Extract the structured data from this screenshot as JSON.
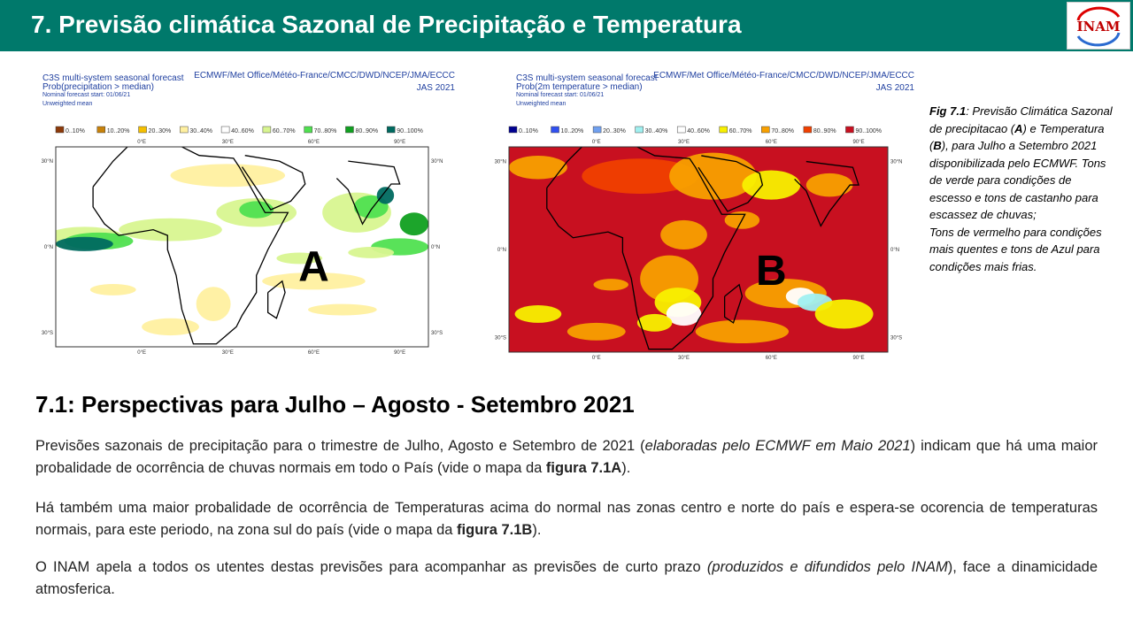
{
  "header": {
    "title": "7. Previsão climática Sazonal de Precipitação e Temperatura",
    "logo": "INAM"
  },
  "maps": [
    {
      "letter": "A",
      "header_left": [
        "C3S multi-system seasonal forecast",
        "Prob(precipitation > median)",
        "Nominal forecast start: 01/06/21",
        "Unweighted mean"
      ],
      "header_right": [
        "ECMWF/Met Office/Météo-France/CMCC/DWD/NCEP/JMA/ECCC",
        "JAS 2021"
      ],
      "legend": [
        {
          "label": "0..10%",
          "color": "#8c3a0a"
        },
        {
          "label": "10..20%",
          "color": "#c8820a"
        },
        {
          "label": "20..30%",
          "color": "#f5c000"
        },
        {
          "label": "30..40%",
          "color": "#fff0a0"
        },
        {
          "label": "40..60%",
          "color": "#ffffff"
        },
        {
          "label": "60..70%",
          "color": "#d8f590"
        },
        {
          "label": "70..80%",
          "color": "#50e050"
        },
        {
          "label": "80..90%",
          "color": "#10a020"
        },
        {
          "label": "90..100%",
          "color": "#006a60"
        }
      ],
      "lon_labels": [
        "0°E",
        "30°E",
        "60°E",
        "90°E"
      ],
      "lat_labels": [
        "30°N",
        "0°N",
        "30°S"
      ]
    },
    {
      "letter": "B",
      "header_left": [
        "C3S multi-system seasonal forecast",
        "Prob(2m temperature > median)",
        "Nominal forecast start: 01/06/21",
        "Unweighted mean"
      ],
      "header_right": [
        "ECMWF/Met Office/Météo-France/CMCC/DWD/NCEP/JMA/ECCC",
        "JAS 2021"
      ],
      "legend": [
        {
          "label": "0..10%",
          "color": "#000090"
        },
        {
          "label": "10..20%",
          "color": "#3050f0"
        },
        {
          "label": "20..30%",
          "color": "#70a0f0"
        },
        {
          "label": "30..40%",
          "color": "#a0f0f0"
        },
        {
          "label": "40..60%",
          "color": "#ffffff"
        },
        {
          "label": "60..70%",
          "color": "#f8f000"
        },
        {
          "label": "70..80%",
          "color": "#f8a000"
        },
        {
          "label": "80..90%",
          "color": "#f04000"
        },
        {
          "label": "90..100%",
          "color": "#c81020"
        }
      ],
      "lon_labels": [
        "0°E",
        "30°E",
        "60°E",
        "90°E"
      ],
      "lat_labels": [
        "30°N",
        "0°N",
        "30°S"
      ]
    }
  ],
  "caption": [
    [
      {
        "text": "Fig 7.1",
        "style": "bold"
      },
      {
        "text": ": Previsão Climática Sazonal de precipitacao (",
        "style": "normal"
      },
      {
        "text": "A",
        "style": "bold"
      },
      {
        "text": ") e Temperatura (",
        "style": "normal"
      },
      {
        "text": "B",
        "style": "bold"
      },
      {
        "text": "), para Julho a Setembro 2021 disponibilizada pelo ECMWF. Tons de verde para condições de escesso e tons de castanho para escassez de chuvas;",
        "style": "normal"
      }
    ],
    [
      {
        "text": "Tons de vermelho para condições mais quentes e tons de Azul para condições mais frias.",
        "style": "normal"
      }
    ]
  ],
  "section": {
    "heading": "7.1: Perspectivas para  Julho – Agosto - Setembro 2021",
    "paragraphs": [
      [
        {
          "text": "Previsões sazonais de precipitação para o trimestre de Julho, Agosto e Setembro de 2021 (",
          "style": "normal"
        },
        {
          "text": "elaboradas pelo ECMWF em Maio 2021",
          "style": "italic"
        },
        {
          "text": ") indicam que há uma maior probalidade de ocorrência de chuvas normais em todo o País (vide o mapa da ",
          "style": "normal"
        },
        {
          "text": "figura 7.1A",
          "style": "bold"
        },
        {
          "text": ").",
          "style": "normal"
        }
      ],
      [
        {
          "text": "Há também uma maior probalidade de ocorrência de Temperaturas acima do normal nas zonas centro e norte do país e espera-se ocorencia de temperaturas normais, para este periodo, na zona sul do país (vide o mapa da ",
          "style": "normal"
        },
        {
          "text": "figura 7.1B",
          "style": "bold"
        },
        {
          "text": ").",
          "style": "normal"
        }
      ],
      [
        {
          "text": "O INAM apela a todos os utentes destas previsões para acompanhar as previsões de curto prazo ",
          "style": "normal"
        },
        {
          "text": "(produzidos e difundidos pelo INAM",
          "style": "italic"
        },
        {
          "text": "), face a dinamicidade atmosferica.",
          "style": "normal"
        }
      ]
    ]
  }
}
